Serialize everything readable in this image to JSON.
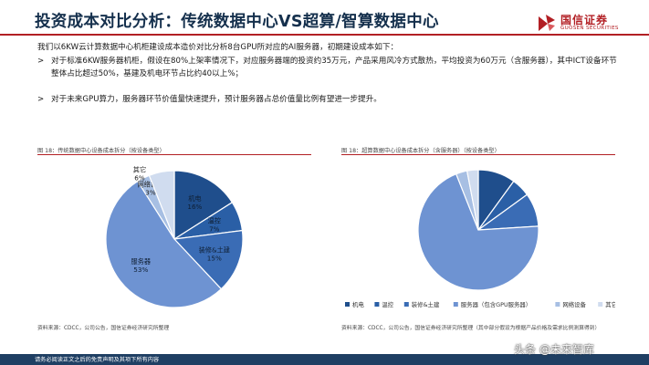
{
  "header": {
    "title": "投资成本对比分析：传统数据中心VS超算/智算数据中心",
    "logo_cn": "国信证券",
    "logo_en": "GUOSEN SECURITIES",
    "brand_color": "#b21f24"
  },
  "intro": "我们以6KW云计算数据中心机柜建设成本造价对比分析8台GPU所对应的AI服务器，初期建设成本如下：",
  "bullets": [
    "对于标准6KW服务器机柜，假设在80%上架率情况下，对应服务器端的投资约35万元，产品采用风冷方式散热，平均投资为60万元（含服务器），其中ICT设备环节整体占比超过50%，基建及机电环节占比约40以上%；",
    "对于未来GPU算力，服务器环节价值量快速提升，预计服务器占总价值量比例有望进一步提升。"
  ],
  "bullet_icon": "arrow-bullet-icon",
  "left_figure": {
    "caption": "图 18：传统数据中心设备成本拆分（按设备类型）",
    "source": "资料来源：CDCC，公司公告，国信证券经济研究所整理"
  },
  "right_figure": {
    "caption": "图 18：超算数据中心设备成本拆分（含服务器）（按设备类型）",
    "source": "资料来源：CDCC，公司公告，国信证券经济研究所整理（其中部分假设为根据产品价格及需求比例测算得到）"
  },
  "chart_data": [
    {
      "type": "pie",
      "title": "",
      "slices": [
        {
          "name": "机电",
          "value": 16,
          "label": "机电\n16%",
          "color": "#1f4e8c"
        },
        {
          "name": "温控",
          "value": 7,
          "label": "温控\n7%",
          "color": "#2a5fa6"
        },
        {
          "name": "装修&土建",
          "value": 15,
          "label": "装修&土建\n15%",
          "color": "#3a6cb5"
        },
        {
          "name": "服务器",
          "value": 53,
          "label": "服务器\n53%",
          "color": "#6e93d2"
        },
        {
          "name": "网络设备",
          "value": 3,
          "label": "网络设备\n3%",
          "color": "#a7bfe3"
        },
        {
          "name": "其它",
          "value": 6,
          "label": "其它\n6%",
          "color": "#d0dcef"
        }
      ]
    },
    {
      "type": "pie",
      "title": "",
      "legend": [
        "机电",
        "温控",
        "装修&土建",
        "服务器（包含GPU服务器）",
        "网络设备",
        "其它"
      ],
      "legend_position": "bottom",
      "slices": [
        {
          "name": "机电",
          "value": 10,
          "color": "#1f4e8c"
        },
        {
          "name": "温控",
          "value": 5,
          "color": "#2a5fa6"
        },
        {
          "name": "装修&土建",
          "value": 9,
          "color": "#3a6cb5"
        },
        {
          "name": "服务器（包含GPU服务器）",
          "value": 70,
          "color": "#6e93d2"
        },
        {
          "name": "网络设备",
          "value": 3,
          "color": "#a7bfe3"
        },
        {
          "name": "其它",
          "value": 3,
          "color": "#d0dcef"
        }
      ]
    }
  ],
  "footer": {
    "disclaimer": "请务必阅读正文之后的免责声明及其项下所有内容",
    "watermark": "头条 @未来智库"
  }
}
